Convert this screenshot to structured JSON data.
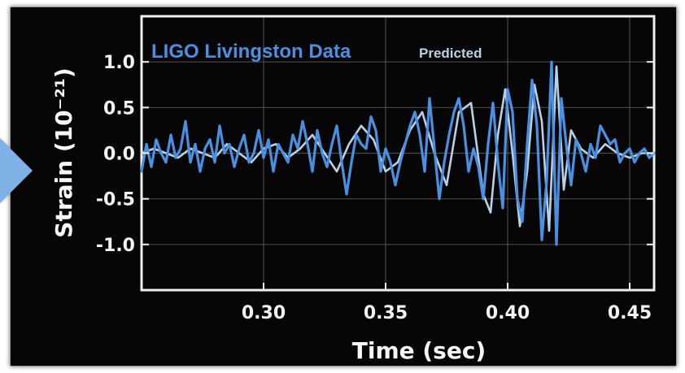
{
  "chart_data": {
    "type": "line",
    "title": "",
    "xlabel": "Time (sec)",
    "ylabel": "Strain (10⁻²¹)",
    "xlim": [
      0.25,
      0.46
    ],
    "ylim": [
      -1.5,
      1.5
    ],
    "x_ticks": [
      {
        "value": 0.3,
        "label": "0.30"
      },
      {
        "value": 0.35,
        "label": "0.35"
      },
      {
        "value": 0.4,
        "label": "0.40"
      },
      {
        "value": 0.45,
        "label": "0.45"
      }
    ],
    "y_ticks": [
      {
        "value": 1.0,
        "label": "1.0"
      },
      {
        "value": 0.5,
        "label": "0.5"
      },
      {
        "value": 0.0,
        "label": "0.0"
      },
      {
        "value": -0.5,
        "label": "-0.5"
      },
      {
        "value": -1.0,
        "label": "-1.0"
      }
    ],
    "grid": true,
    "legend_position": "top-left",
    "series": [
      {
        "name": "LIGO Livingston Data",
        "color": "#4a90e2",
        "x": [
          0.25,
          0.252,
          0.254,
          0.256,
          0.258,
          0.26,
          0.262,
          0.264,
          0.266,
          0.268,
          0.27,
          0.272,
          0.274,
          0.276,
          0.278,
          0.28,
          0.282,
          0.284,
          0.286,
          0.288,
          0.29,
          0.292,
          0.294,
          0.296,
          0.298,
          0.3,
          0.302,
          0.304,
          0.306,
          0.308,
          0.31,
          0.312,
          0.314,
          0.316,
          0.318,
          0.32,
          0.322,
          0.324,
          0.326,
          0.328,
          0.33,
          0.332,
          0.334,
          0.336,
          0.338,
          0.34,
          0.342,
          0.344,
          0.346,
          0.348,
          0.35,
          0.352,
          0.354,
          0.356,
          0.358,
          0.36,
          0.362,
          0.364,
          0.366,
          0.368,
          0.37,
          0.372,
          0.374,
          0.376,
          0.378,
          0.38,
          0.382,
          0.384,
          0.386,
          0.388,
          0.39,
          0.392,
          0.394,
          0.396,
          0.398,
          0.4,
          0.402,
          0.404,
          0.406,
          0.408,
          0.41,
          0.412,
          0.414,
          0.416,
          0.418,
          0.42,
          0.422,
          0.424,
          0.426,
          0.428,
          0.43,
          0.432,
          0.434,
          0.436,
          0.438,
          0.44,
          0.442,
          0.444,
          0.446,
          0.448,
          0.45,
          0.452,
          0.454,
          0.456,
          0.458,
          0.46
        ],
        "values": [
          -0.2,
          0.1,
          -0.15,
          0.15,
          0.0,
          -0.1,
          0.2,
          -0.05,
          0.05,
          0.35,
          -0.1,
          0.1,
          -0.2,
          0.05,
          0.15,
          -0.1,
          0.3,
          0.0,
          0.1,
          -0.15,
          0.05,
          0.2,
          -0.1,
          0.0,
          0.25,
          -0.05,
          0.15,
          -0.2,
          0.1,
          0.0,
          -0.1,
          0.2,
          0.05,
          0.35,
          0.1,
          -0.2,
          0.25,
          0.0,
          -0.15,
          0.1,
          0.3,
          -0.1,
          -0.45,
          -0.1,
          0.2,
          0.1,
          0.05,
          0.4,
          0.25,
          -0.2,
          0.05,
          -0.1,
          -0.35,
          -0.1,
          0.1,
          0.3,
          0.45,
          0.2,
          -0.2,
          0.6,
          0.05,
          -0.5,
          -0.1,
          0.2,
          0.45,
          0.6,
          0.3,
          -0.2,
          0.05,
          -0.15,
          -0.5,
          0.1,
          0.55,
          -0.1,
          -0.6,
          0.7,
          0.45,
          -0.5,
          -0.75,
          0.1,
          0.8,
          0.3,
          -0.95,
          -0.3,
          1.0,
          -1.0,
          0.6,
          0.1,
          -0.35,
          0.15,
          0.0,
          -0.2,
          0.1,
          -0.05,
          0.3,
          0.2,
          0.1,
          0.15,
          -0.1,
          0.0,
          0.05,
          -0.1,
          0.0,
          0.05,
          -0.05,
          0.0
        ]
      },
      {
        "name": "Predicted",
        "color": "#b9d1e4",
        "x": [
          0.25,
          0.255,
          0.26,
          0.265,
          0.27,
          0.275,
          0.28,
          0.285,
          0.29,
          0.295,
          0.3,
          0.305,
          0.31,
          0.315,
          0.32,
          0.325,
          0.33,
          0.335,
          0.34,
          0.345,
          0.35,
          0.355,
          0.36,
          0.365,
          0.37,
          0.375,
          0.38,
          0.385,
          0.39,
          0.393,
          0.396,
          0.399,
          0.402,
          0.405,
          0.408,
          0.411,
          0.414,
          0.417,
          0.42,
          0.423,
          0.426,
          0.43,
          0.435,
          0.44,
          0.445,
          0.45,
          0.455,
          0.46
        ],
        "values": [
          0.0,
          0.05,
          0.0,
          -0.05,
          0.05,
          0.0,
          -0.05,
          0.1,
          0.0,
          -0.1,
          0.05,
          0.1,
          -0.05,
          0.05,
          0.2,
          0.0,
          -0.2,
          0.1,
          0.3,
          0.15,
          -0.2,
          -0.1,
          0.25,
          0.45,
          0.0,
          -0.35,
          0.45,
          0.55,
          -0.45,
          -0.65,
          0.2,
          0.7,
          0.0,
          -0.8,
          -0.2,
          0.75,
          0.35,
          -0.85,
          0.95,
          -0.4,
          0.25,
          0.05,
          -0.05,
          0.1,
          0.0,
          -0.05,
          0.0,
          0.0
        ]
      }
    ]
  }
}
